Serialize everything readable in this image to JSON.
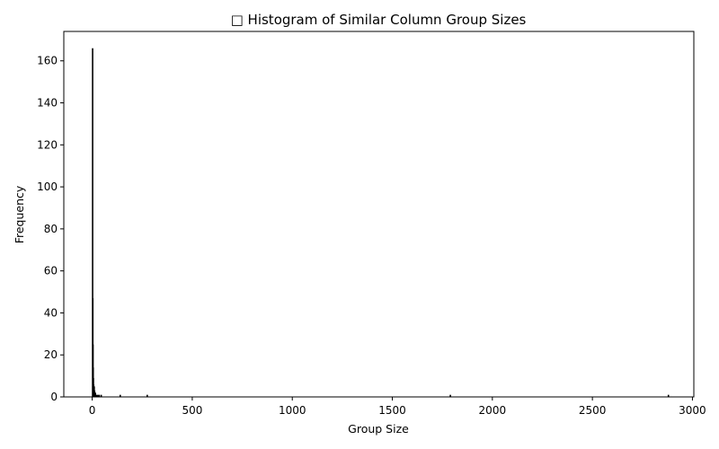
{
  "chart_data": {
    "type": "bar",
    "title": "□ Histogram of Similar Column Group Sizes",
    "xlabel": "Group Size",
    "ylabel": "Frequency",
    "xlim": [
      -142,
      3007
    ],
    "ylim": [
      0,
      174
    ],
    "x_ticks": [
      0,
      500,
      1000,
      1500,
      2000,
      2500,
      3000
    ],
    "y_ticks": [
      0,
      20,
      40,
      60,
      80,
      100,
      120,
      140,
      160
    ],
    "grid": false,
    "bar_color": "#000000",
    "bars": [
      {
        "x": 2,
        "value": 166
      },
      {
        "x": 3,
        "value": 47
      },
      {
        "x": 4,
        "value": 25
      },
      {
        "x": 5,
        "value": 14
      },
      {
        "x": 6,
        "value": 9
      },
      {
        "x": 7,
        "value": 6
      },
      {
        "x": 8,
        "value": 5
      },
      {
        "x": 10,
        "value": 5
      },
      {
        "x": 12,
        "value": 3
      },
      {
        "x": 14,
        "value": 2
      },
      {
        "x": 16,
        "value": 2
      },
      {
        "x": 22,
        "value": 1
      },
      {
        "x": 28,
        "value": 1
      },
      {
        "x": 35,
        "value": 1
      },
      {
        "x": 45,
        "value": 1
      },
      {
        "x": 140,
        "value": 1
      },
      {
        "x": 275,
        "value": 1
      },
      {
        "x": 1790,
        "value": 1
      },
      {
        "x": 2880,
        "value": 1
      }
    ]
  }
}
